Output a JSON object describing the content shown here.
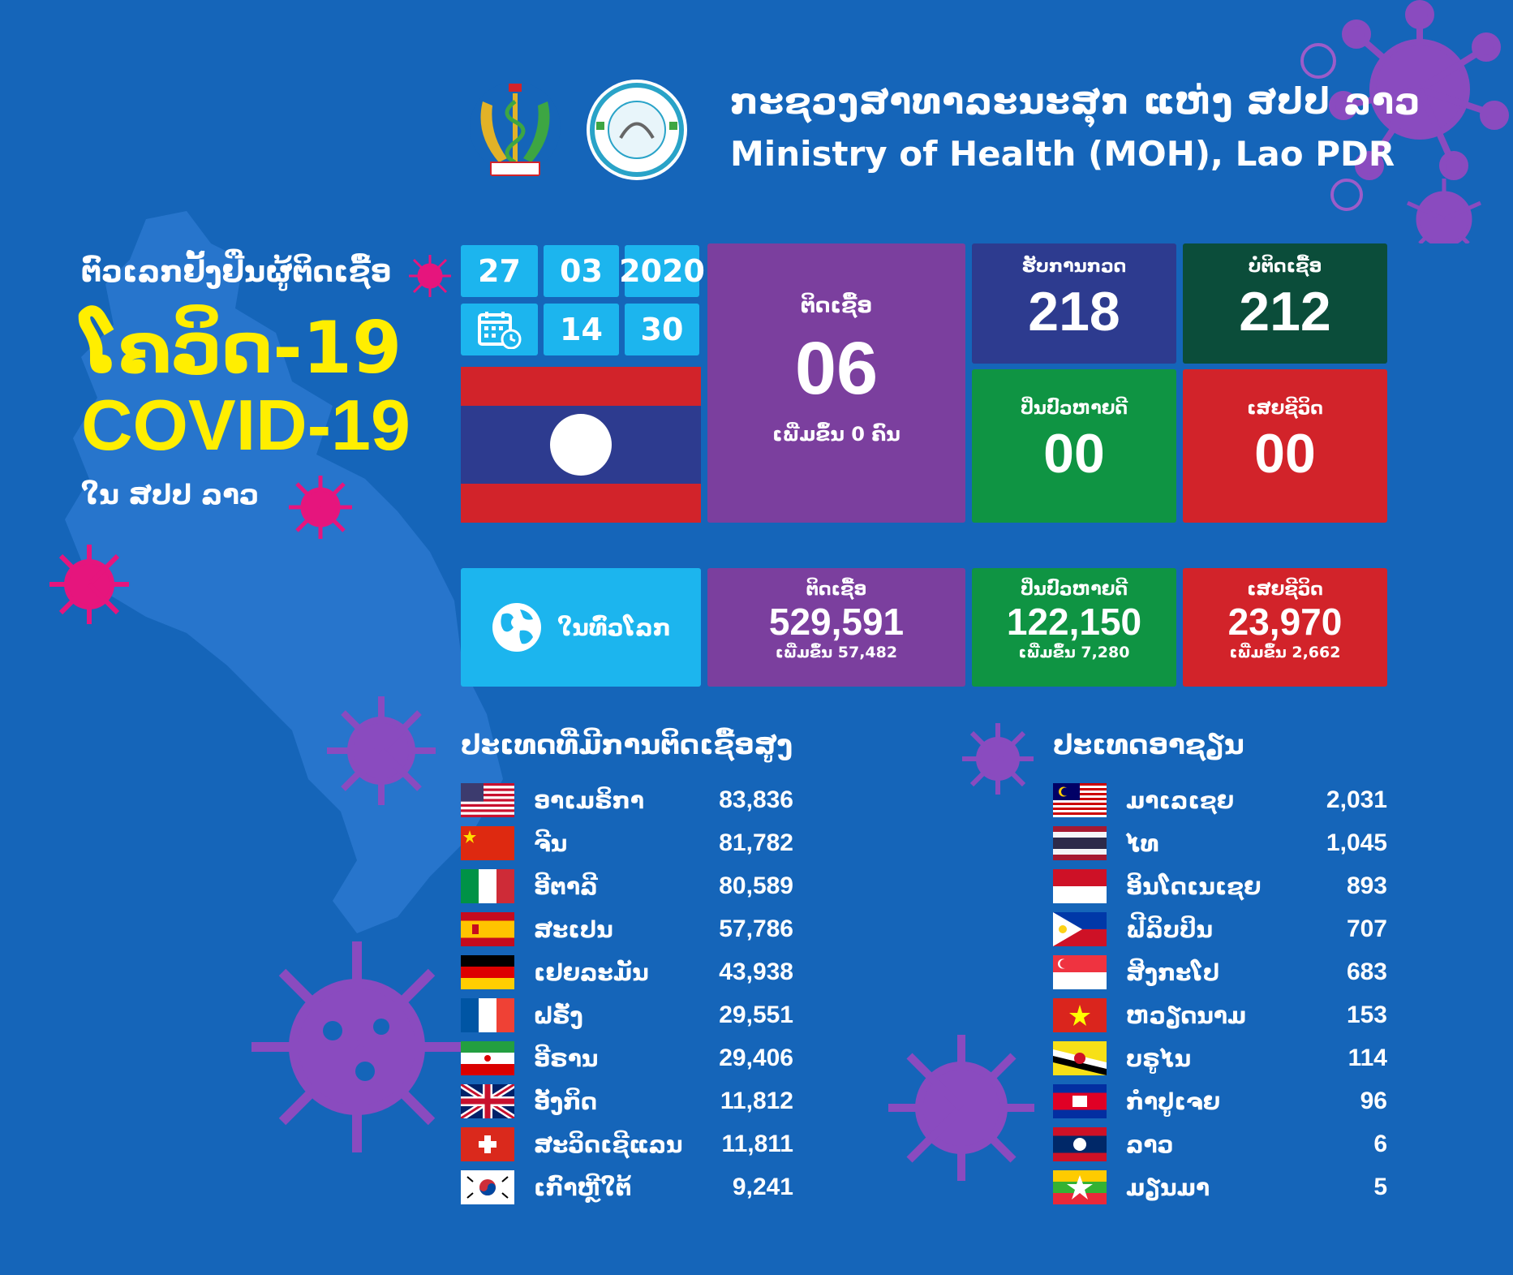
{
  "header": {
    "title_lo": "ກະຊວງສາທາລະນະສຸກ ແຫ່ງ ສປປ ລາວ",
    "title_en": "Ministry of Health (MOH), Lao PDR"
  },
  "title": {
    "line1": "ຕົວເລກຢັ້ງຢືນຜູ້ຕິດເຊື້ອ",
    "line2": "ໂຄວິດ-19",
    "line3": "COVID-19",
    "line4": "ໃນ ສປປ ລາວ"
  },
  "date": {
    "day": "27",
    "month": "03",
    "year": "2020",
    "hour": "14",
    "minute": "30",
    "calendar_icon": "calendar-clock-icon"
  },
  "laos": {
    "infected": {
      "label": "ຕິດເຊື້ອ",
      "value": "06",
      "note": "ເພີ່ມຂຶ້ນ 0 ຄົນ"
    },
    "awaiting": {
      "label": "ຮັບການກວດ",
      "value": "218"
    },
    "negative": {
      "label": "ບໍ່ຕິດເຊື້ອ",
      "value": "212"
    },
    "recovered": {
      "label": "ປິ່ນປົວຫາຍດີ",
      "value": "00"
    },
    "deaths": {
      "label": "ເສຍຊີວິດ",
      "value": "00"
    }
  },
  "world": {
    "label": "ໃນທົ່ວໂລກ",
    "globe_icon": "globe-icon",
    "infected": {
      "label": "ຕິດເຊື້ອ",
      "value": "529,591",
      "note": "ເພີ່ມຂຶ້ນ 57,482"
    },
    "recovered": {
      "label": "ປິ່ນປົວຫາຍດີ",
      "value": "122,150",
      "note": "ເພີ່ມຂຶ້ນ 7,280"
    },
    "deaths": {
      "label": "ເສຍຊີວິດ",
      "value": "23,970",
      "note": "ເພີ່ມຂຶ້ນ 2,662"
    }
  },
  "top_countries": {
    "title": "ປະເທດທີ່ມີການຕິດເຊື້ອສູງ",
    "rows": [
      {
        "name": "ອາເມຣິກາ",
        "value": "83,836",
        "flag": "us"
      },
      {
        "name": "ຈີນ",
        "value": "81,782",
        "flag": "cn"
      },
      {
        "name": "ອີຕາລີ",
        "value": "80,589",
        "flag": "it"
      },
      {
        "name": "ສະເປນ",
        "value": "57,786",
        "flag": "es"
      },
      {
        "name": "ເຢຍລະມັນ",
        "value": "43,938",
        "flag": "de"
      },
      {
        "name": "ຝຣັ່ງ",
        "value": "29,551",
        "flag": "fr"
      },
      {
        "name": "ອີຣານ",
        "value": "29,406",
        "flag": "ir"
      },
      {
        "name": "ອັງກິດ",
        "value": "11,812",
        "flag": "gb"
      },
      {
        "name": "ສະວິດເຊີແລນ",
        "value": "11,811",
        "flag": "ch"
      },
      {
        "name": "ເກົາຫຼີໃຕ້",
        "value": "9,241",
        "flag": "kr"
      }
    ]
  },
  "asean": {
    "title": "ປະເທດອາຊຽນ",
    "rows": [
      {
        "name": "ມາເລເຊຍ",
        "value": "2,031",
        "flag": "my"
      },
      {
        "name": "ໄທ",
        "value": "1,045",
        "flag": "th"
      },
      {
        "name": "ອິນໂດເນເຊຍ",
        "value": "893",
        "flag": "id"
      },
      {
        "name": "ຟີລິບປິນ",
        "value": "707",
        "flag": "ph"
      },
      {
        "name": "ສິງກະໂປ",
        "value": "683",
        "flag": "sg"
      },
      {
        "name": "ຫວຽດນາມ",
        "value": "153",
        "flag": "vn"
      },
      {
        "name": "ບຣູໄນ",
        "value": "114",
        "flag": "bn"
      },
      {
        "name": "ກຳປູເຈຍ",
        "value": "96",
        "flag": "kh"
      },
      {
        "name": "ລາວ",
        "value": "6",
        "flag": "la"
      },
      {
        "name": "ມຽນມາ",
        "value": "5",
        "flag": "mm"
      }
    ]
  },
  "colors": {
    "background": "#1565b9",
    "date_box": "#1cb5ee",
    "purple": "#7b3f9e",
    "navy": "#2d3b8f",
    "dark_green": "#0b4d3a",
    "green": "#0f9443",
    "red": "#d2232a",
    "yellow": "#ffee00",
    "virus_purple": "#8a4bbf",
    "virus_pink": "#e6157d"
  }
}
